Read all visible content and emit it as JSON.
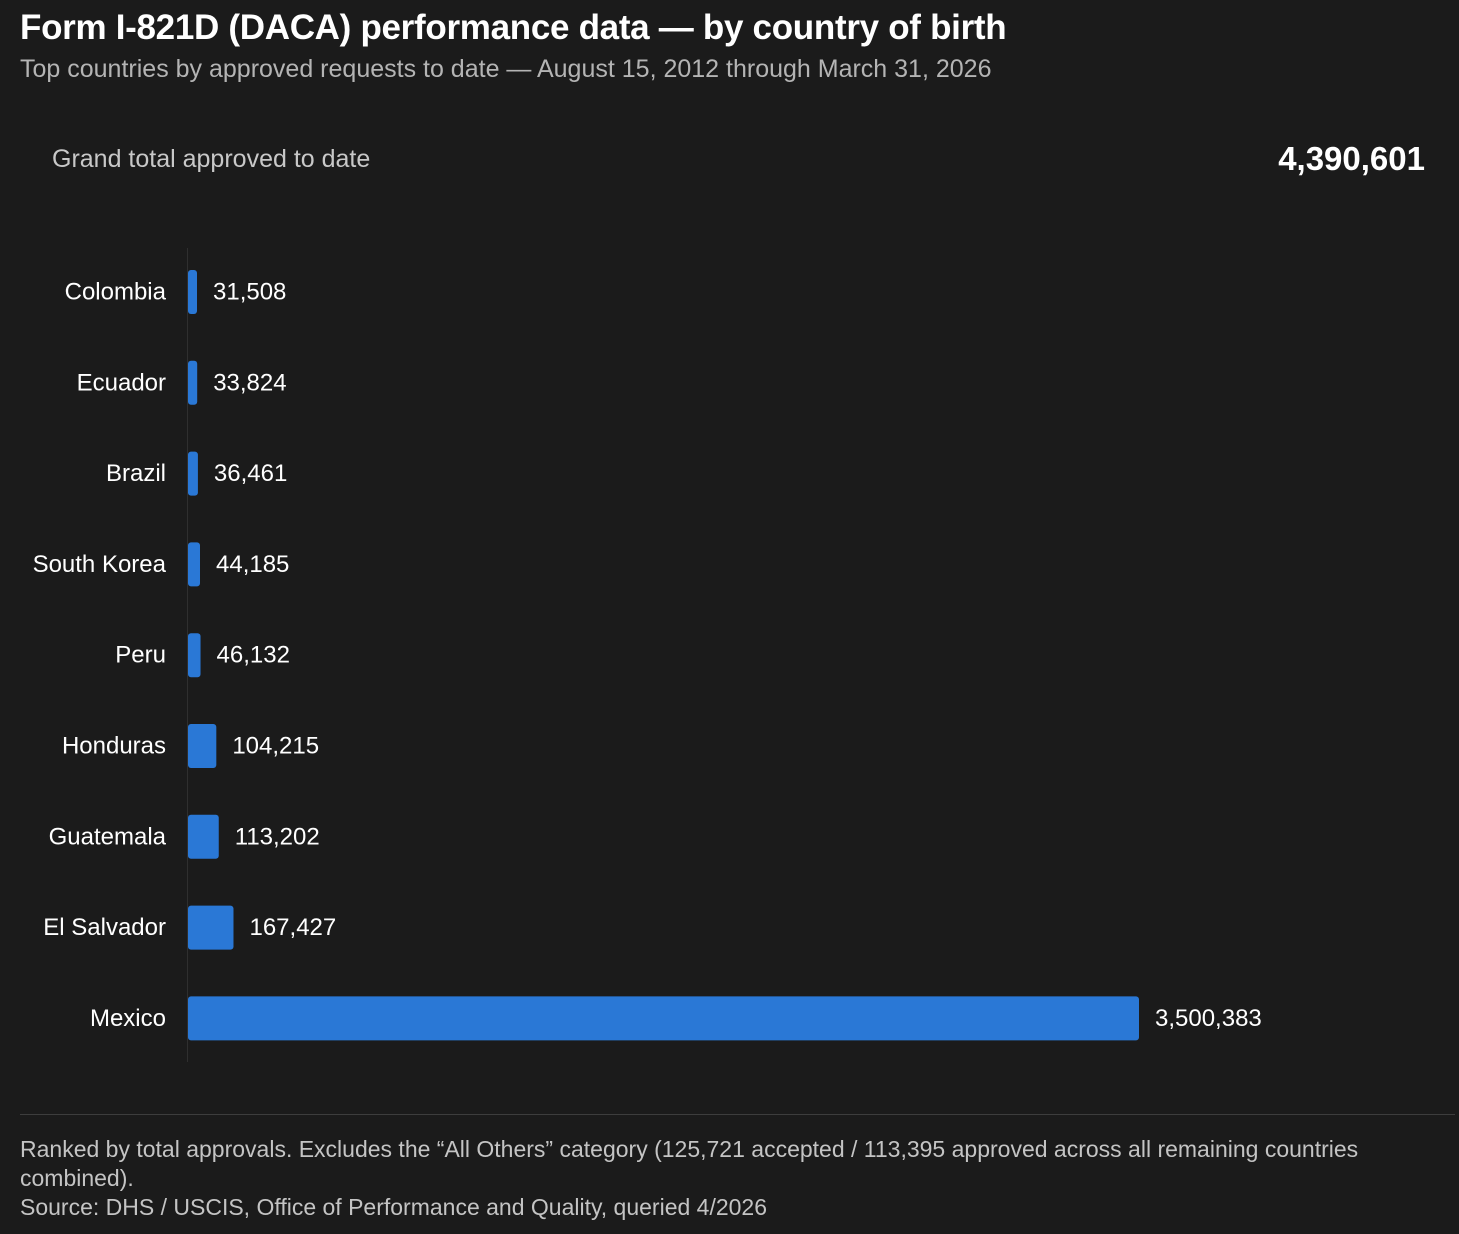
{
  "header": {
    "title": "Form I-821D (DACA) performance data — by country of birth",
    "subtitle": "Top countries by approved requests to date — August 15, 2012 through March 31, 2026"
  },
  "summary": {
    "label": "Grand total approved to date",
    "value": "4,390,601"
  },
  "chart_data": {
    "type": "bar",
    "orientation": "horizontal",
    "categories": [
      "Colombia",
      "Ecuador",
      "Brazil",
      "South Korea",
      "Peru",
      "Honduras",
      "Guatemala",
      "El Salvador",
      "Mexico"
    ],
    "values": [
      31508,
      33824,
      36461,
      44185,
      46132,
      104215,
      113202,
      167427,
      3500383
    ],
    "value_labels": [
      "31,508",
      "33,824",
      "36,461",
      "44,185",
      "46,132",
      "104,215",
      "113,202",
      "167,427",
      "3,500,383"
    ],
    "xlim": [
      0,
      3500383
    ],
    "grid": false,
    "bar_color": "#2a78d6"
  },
  "footer": {
    "note": "Ranked by total approvals. Excludes the “All Others” category (125,721 accepted / 113,395 approved across all remaining countries combined).",
    "source": "Source: DHS / USCIS, Office of Performance and Quality, queried 4/2026"
  }
}
